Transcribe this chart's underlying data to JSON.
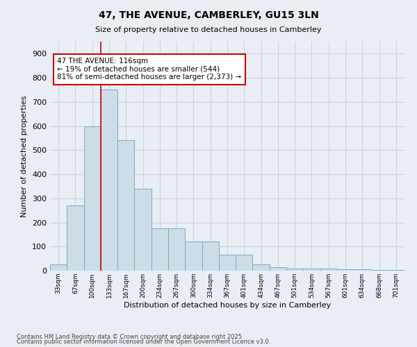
{
  "title": "47, THE AVENUE, CAMBERLEY, GU15 3LN",
  "subtitle": "Size of property relative to detached houses in Camberley",
  "xlabel": "Distribution of detached houses by size in Camberley",
  "ylabel": "Number of detached properties",
  "categories": [
    "33sqm",
    "67sqm",
    "100sqm",
    "133sqm",
    "167sqm",
    "200sqm",
    "234sqm",
    "267sqm",
    "300sqm",
    "334sqm",
    "367sqm",
    "401sqm",
    "434sqm",
    "467sqm",
    "501sqm",
    "534sqm",
    "567sqm",
    "601sqm",
    "634sqm",
    "668sqm",
    "701sqm"
  ],
  "values": [
    27,
    270,
    600,
    750,
    540,
    340,
    175,
    175,
    120,
    120,
    65,
    65,
    27,
    15,
    10,
    10,
    8,
    5,
    5,
    3,
    2
  ],
  "bar_color": "#ccdde8",
  "bar_edge_color": "#7aaac8",
  "annotation_text": "47 THE AVENUE: 116sqm\n← 19% of detached houses are smaller (544)\n81% of semi-detached houses are larger (2,373) →",
  "annotation_box_color": "#ffffff",
  "annotation_box_edge": "#cc0000",
  "vline_color": "#cc0000",
  "footer1": "Contains HM Land Registry data © Crown copyright and database right 2025.",
  "footer2": "Contains public sector information licensed under the Open Government Licence v3.0.",
  "bg_color": "#e8eef4",
  "plot_bg_color": "#e8eef4",
  "grid_color": "#c8d4dc",
  "ylim": [
    0,
    950
  ],
  "yticks": [
    0,
    100,
    200,
    300,
    400,
    500,
    600,
    700,
    800,
    900
  ]
}
